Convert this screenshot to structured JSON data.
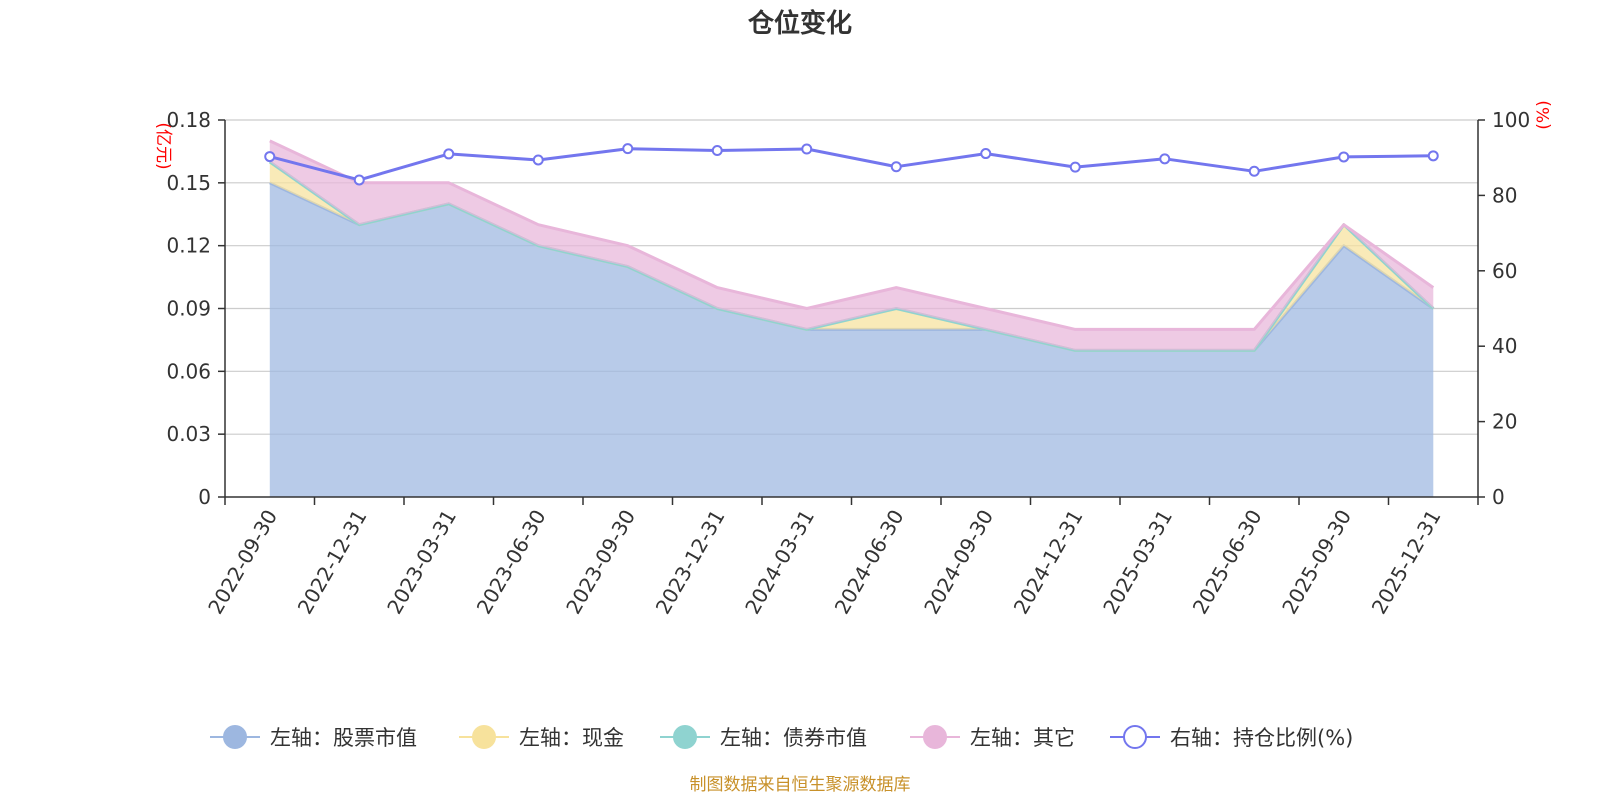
{
  "chart_data": {
    "type": "area",
    "title": "仓位变化",
    "categories": [
      "2022-09-30",
      "2022-12-31",
      "2023-03-31",
      "2023-06-30",
      "2023-09-30",
      "2023-12-31",
      "2024-03-31",
      "2024-06-30",
      "2024-09-30",
      "2024-12-31",
      "2025-03-31",
      "2025-06-30",
      "2025-09-30",
      "2025-12-31"
    ],
    "left_axis": {
      "unit_label": "(亿元)",
      "range": [
        0,
        0.18
      ],
      "ticks": [
        "0",
        "0.03",
        "0.06",
        "0.09",
        "0.12",
        "0.15",
        "0.18"
      ],
      "tick_values": [
        0,
        0.03,
        0.06,
        0.09,
        0.12,
        0.15,
        0.18
      ]
    },
    "right_axis": {
      "unit_label": "(%)",
      "range": [
        0,
        100
      ],
      "ticks": [
        "0",
        "20",
        "40",
        "60",
        "80",
        "100"
      ],
      "tick_values": [
        0,
        20,
        40,
        60,
        80,
        100
      ]
    },
    "stacked_series": [
      {
        "name": "左轴：股票市值",
        "color": "#9db7e0",
        "values": [
          0.15,
          0.13,
          0.14,
          0.12,
          0.11,
          0.09,
          0.08,
          0.08,
          0.08,
          0.07,
          0.07,
          0.07,
          0.12,
          0.09
        ]
      },
      {
        "name": "左轴：现金",
        "color": "#f7e29c",
        "values": [
          0.01,
          0.0,
          0.0,
          0.0,
          0.0,
          0.0,
          0.0,
          0.01,
          0.0,
          0.0,
          0.0,
          0.0,
          0.01,
          0.0
        ]
      },
      {
        "name": "左轴：债券市值",
        "color": "#8fd3d0",
        "values": [
          0,
          0,
          0,
          0,
          0,
          0,
          0,
          0,
          0,
          0,
          0,
          0,
          0,
          0
        ]
      },
      {
        "name": "左轴：其它",
        "color": "#e8b6da",
        "values": [
          0.01,
          0.02,
          0.01,
          0.01,
          0.01,
          0.01,
          0.01,
          0.01,
          0.01,
          0.01,
          0.01,
          0.01,
          0.0,
          0.01
        ]
      }
    ],
    "line_series": {
      "name": "右轴：持仓比例(%)",
      "color": "#7376ee",
      "values": [
        90.3,
        84.1,
        91.0,
        89.4,
        92.4,
        91.9,
        92.3,
        87.6,
        91.1,
        87.5,
        89.7,
        86.4,
        90.2,
        90.5
      ]
    },
    "legend": [
      "左轴：股票市值",
      "左轴：现金",
      "左轴：债券市值",
      "左轴：其它",
      "右轴：持仓比例(%)"
    ],
    "source": "制图数据来自恒生聚源数据库"
  }
}
